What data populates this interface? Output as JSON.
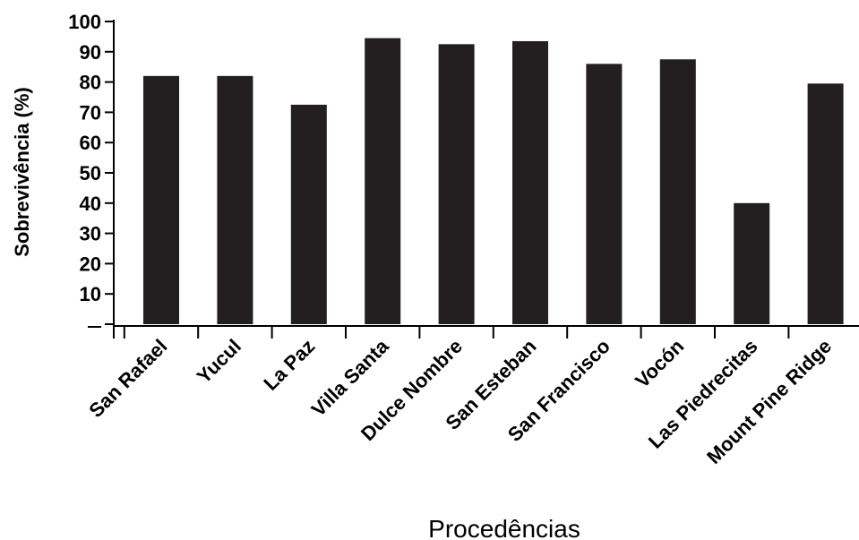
{
  "chart_data": {
    "type": "bar",
    "categories": [
      "San Rafael",
      "Yucul",
      "La Paz",
      "Villa Santa",
      "Dulce Nombre",
      "San Esteban",
      "San Francisco",
      "Vocón",
      "Las Piedrecitas",
      "Mount Pine Ridge"
    ],
    "values": [
      82,
      82,
      72.5,
      94.5,
      92.5,
      93.5,
      86,
      87.5,
      40,
      79.5
    ],
    "xlabel": "Procedências",
    "ylabel": "Sobrevivência (%)",
    "ylim": [
      0,
      100
    ],
    "yticks": [
      "",
      "10",
      "20",
      "30",
      "40",
      "50",
      "60",
      "70",
      "80",
      "90",
      "100"
    ],
    "grid": false,
    "bar_color": "#231f20"
  }
}
